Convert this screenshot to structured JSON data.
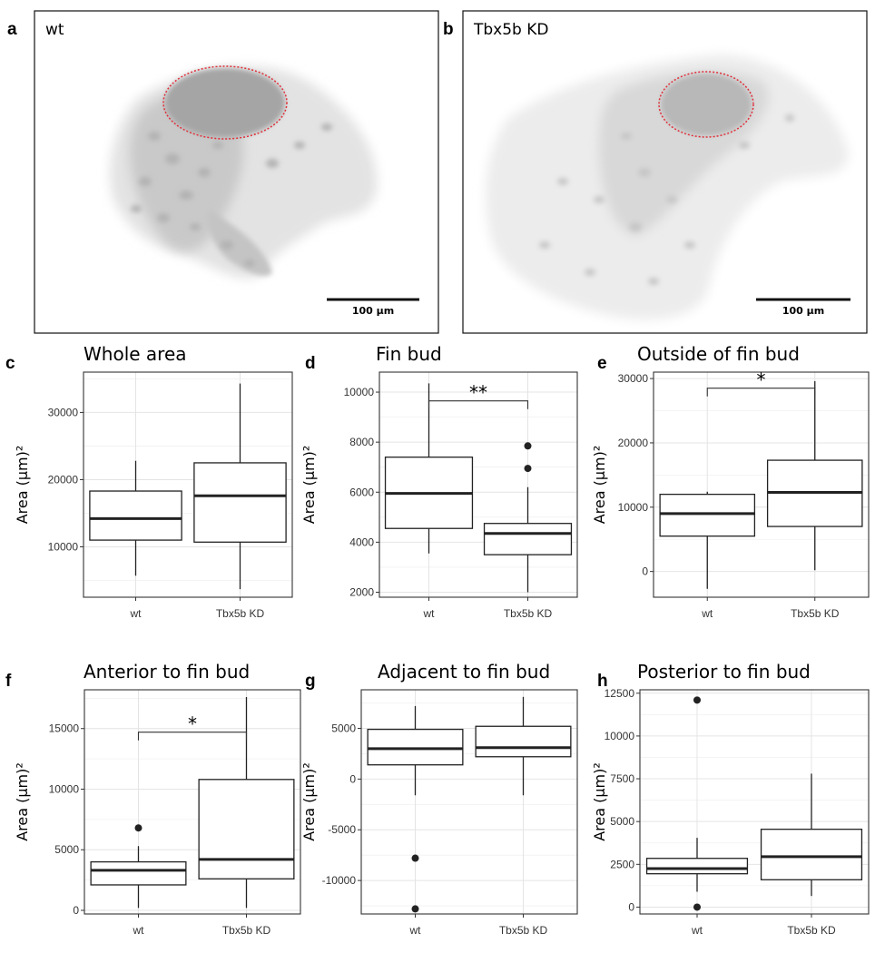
{
  "microscopy": [
    {
      "panel": "a",
      "label": "wt",
      "scalebar": "100 μm"
    },
    {
      "panel": "b",
      "label": "Tbx5b KD",
      "scalebar": "100 μm"
    }
  ],
  "chart_data": [
    {
      "panel": "c",
      "type": "box",
      "title": "Whole area",
      "ylabel": "Area (μm)²",
      "categories": [
        "wt",
        "Tbx5b KD"
      ],
      "ylim": [
        2500,
        36000
      ],
      "yticks": [
        10000,
        20000,
        30000
      ],
      "boxes": [
        {
          "min": 5700,
          "q1": 11000,
          "median": 14200,
          "q3": 18300,
          "max": 22800,
          "outliers": []
        },
        {
          "min": 3700,
          "q1": 10700,
          "median": 17600,
          "q3": 22500,
          "max": 34300,
          "outliers": []
        }
      ],
      "significance": null
    },
    {
      "panel": "d",
      "type": "box",
      "title": "Fin bud",
      "ylabel": "Area (μm)²",
      "categories": [
        "wt",
        "Tbx5b KD"
      ],
      "ylim": [
        1800,
        10800
      ],
      "yticks": [
        2000,
        4000,
        6000,
        8000,
        10000
      ],
      "boxes": [
        {
          "min": 3550,
          "q1": 4550,
          "median": 5950,
          "q3": 7400,
          "max": 10350,
          "outliers": []
        },
        {
          "min": 2000,
          "q1": 3500,
          "median": 4350,
          "q3": 4750,
          "max": 6200,
          "outliers": [
            6950,
            7850
          ]
        }
      ],
      "significance": {
        "label": "**",
        "y": 9650
      }
    },
    {
      "panel": "e",
      "type": "box",
      "title": "Outside of fin bud",
      "ylabel": "Area (μm)²",
      "categories": [
        "wt",
        "Tbx5b KD"
      ],
      "ylim": [
        -4000,
        31000
      ],
      "yticks": [
        0,
        10000,
        20000,
        30000
      ],
      "boxes": [
        {
          "min": -2700,
          "q1": 5500,
          "median": 9000,
          "q3": 12000,
          "max": 12400,
          "outliers": []
        },
        {
          "min": 200,
          "q1": 7000,
          "median": 12300,
          "q3": 17300,
          "max": 29600,
          "outliers": []
        }
      ],
      "significance": {
        "label": "*",
        "y": 28500
      }
    },
    {
      "panel": "f",
      "type": "box",
      "title": "Anterior to fin bud",
      "ylabel": "Area (μm)²",
      "categories": [
        "wt",
        "Tbx5b KD"
      ],
      "ylim": [
        -300,
        18200
      ],
      "yticks": [
        0,
        5000,
        10000,
        15000
      ],
      "boxes": [
        {
          "min": 200,
          "q1": 2100,
          "median": 3300,
          "q3": 4000,
          "max": 5300,
          "outliers": [
            6800
          ]
        },
        {
          "min": 200,
          "q1": 2600,
          "median": 4200,
          "q3": 10800,
          "max": 17600,
          "outliers": []
        }
      ],
      "significance": {
        "label": "*",
        "y": 14700
      }
    },
    {
      "panel": "g",
      "type": "box",
      "title": "Adjacent to fin bud",
      "ylabel": "Area (μm)²",
      "categories": [
        "wt",
        "Tbx5b KD"
      ],
      "ylim": [
        -13300,
        8800
      ],
      "yticks": [
        -10000,
        -5000,
        0,
        5000
      ],
      "boxes": [
        {
          "min": -1600,
          "q1": 1400,
          "median": 3000,
          "q3": 4900,
          "max": 7200,
          "outliers": [
            -7800,
            -12800
          ]
        },
        {
          "min": -1600,
          "q1": 2200,
          "median": 3100,
          "q3": 5200,
          "max": 8100,
          "outliers": []
        }
      ],
      "significance": null
    },
    {
      "panel": "h",
      "type": "box",
      "title": "Posterior to fin bud",
      "ylabel": "Area (μm)²",
      "categories": [
        "wt",
        "Tbx5b KD"
      ],
      "ylim": [
        -400,
        12700
      ],
      "yticks": [
        0,
        2500,
        5000,
        7500,
        10000,
        12500
      ],
      "boxes": [
        {
          "min": 900,
          "q1": 1950,
          "median": 2250,
          "q3": 2850,
          "max": 4050,
          "outliers": [
            12100,
            0
          ]
        },
        {
          "min": 650,
          "q1": 1600,
          "median": 2950,
          "q3": 4550,
          "max": 7800,
          "outliers": []
        }
      ],
      "significance": null
    }
  ]
}
